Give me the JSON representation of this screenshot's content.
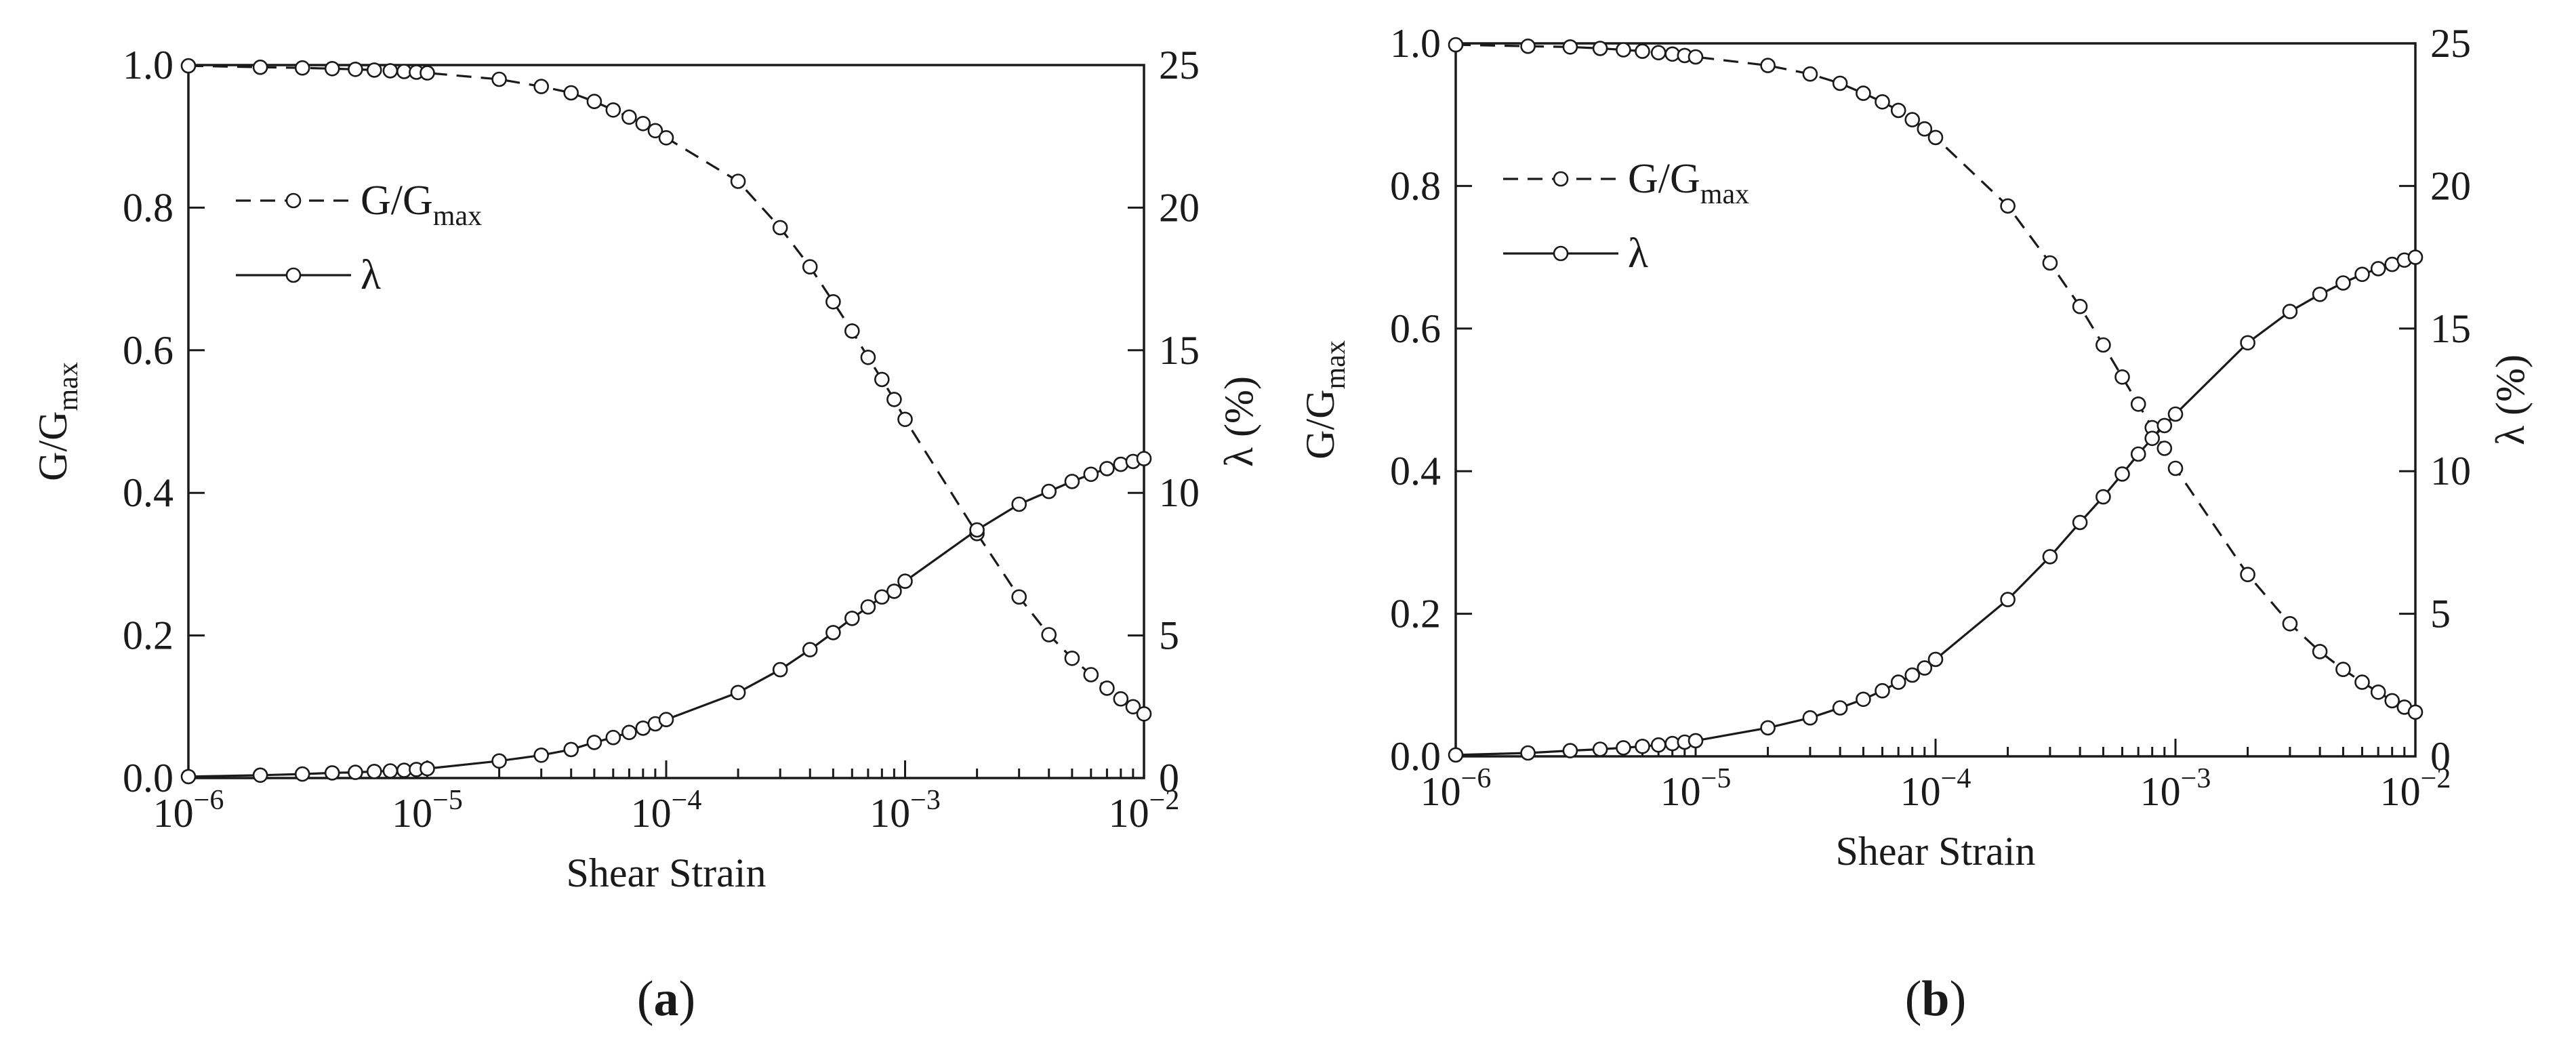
{
  "figure": {
    "panels": [
      {
        "label_open": "(",
        "label_letter": "a",
        "label_close": ")",
        "chart_data": {
          "type": "line",
          "x_scale": "log",
          "xlabel": "Shear Strain",
          "xlim": [
            1e-06,
            0.01
          ],
          "x_ticks": [
            1e-06,
            1e-05,
            0.0001,
            0.001,
            0.01
          ],
          "x_tick_labels": [
            {
              "base": "10",
              "exp": "−6"
            },
            {
              "base": "10",
              "exp": "−5"
            },
            {
              "base": "10",
              "exp": "−4"
            },
            {
              "base": "10",
              "exp": "−3"
            },
            {
              "base": "10",
              "exp": "−2"
            }
          ],
          "ylabel_left": {
            "main": "G/G",
            "sub": "max"
          },
          "ylim_left": [
            0,
            1
          ],
          "y_ticks_left": [
            "0.0",
            "0.2",
            "0.4",
            "0.6",
            "0.8",
            "1.0"
          ],
          "ylabel_right": "λ (%)",
          "ylim_right": [
            0,
            25
          ],
          "y_ticks_right": [
            "0",
            "5",
            "10",
            "15",
            "20",
            "25"
          ],
          "grid": false,
          "legend_position": "top-left",
          "series": [
            {
              "name": {
                "main": "G/G",
                "sub": "max"
              },
              "axis": "left",
              "style": "dashed",
              "marker": "open-circle",
              "x": [
                1e-06,
                2e-06,
                3e-06,
                4e-06,
                5e-06,
                6e-06,
                7e-06,
                8e-06,
                9e-06,
                1e-05,
                2e-05,
                3e-05,
                4e-05,
                5e-05,
                6e-05,
                7e-05,
                8e-05,
                9e-05,
                0.0001,
                0.0002,
                0.0003,
                0.0004,
                0.0005,
                0.0006,
                0.0007,
                0.0008,
                0.0009,
                0.001,
                0.002,
                0.003,
                0.004,
                0.005,
                0.006,
                0.007,
                0.008,
                0.009,
                0.01
              ],
              "y": [
                0.999,
                0.997,
                0.996,
                0.995,
                0.994,
                0.993,
                0.992,
                0.991,
                0.99,
                0.989,
                0.98,
                0.97,
                0.961,
                0.949,
                0.937,
                0.927,
                0.918,
                0.908,
                0.898,
                0.837,
                0.772,
                0.717,
                0.668,
                0.627,
                0.59,
                0.559,
                0.531,
                0.503,
                0.343,
                0.254,
                0.201,
                0.168,
                0.145,
                0.126,
                0.111,
                0.1,
                0.09
              ]
            },
            {
              "name": {
                "main": "λ",
                "sub": ""
              },
              "axis": "right",
              "style": "solid",
              "marker": "open-circle",
              "x": [
                1e-06,
                2e-06,
                3e-06,
                4e-06,
                5e-06,
                6e-06,
                7e-06,
                8e-06,
                9e-06,
                1e-05,
                2e-05,
                3e-05,
                4e-05,
                5e-05,
                6e-05,
                7e-05,
                8e-05,
                9e-05,
                0.0001,
                0.0002,
                0.0003,
                0.0004,
                0.0005,
                0.0006,
                0.0007,
                0.0008,
                0.0009,
                0.001,
                0.002,
                0.003,
                0.004,
                0.005,
                0.006,
                0.007,
                0.008,
                0.009,
                0.01
              ],
              "y": [
                0.05,
                0.1,
                0.14,
                0.18,
                0.2,
                0.23,
                0.25,
                0.27,
                0.3,
                0.33,
                0.6,
                0.8,
                1.0,
                1.25,
                1.42,
                1.6,
                1.75,
                1.9,
                2.05,
                3.0,
                3.8,
                4.5,
                5.1,
                5.6,
                6.0,
                6.35,
                6.55,
                6.9,
                8.7,
                9.6,
                10.05,
                10.4,
                10.65,
                10.85,
                11.0,
                11.1,
                11.2
              ]
            }
          ]
        }
      },
      {
        "label_open": "(",
        "label_letter": "b",
        "label_close": ")",
        "chart_data": {
          "type": "line",
          "x_scale": "log",
          "xlabel": "Shear Strain",
          "xlim": [
            1e-06,
            0.01
          ],
          "x_ticks": [
            1e-06,
            1e-05,
            0.0001,
            0.001,
            0.01
          ],
          "x_tick_labels": [
            {
              "base": "10",
              "exp": "−6"
            },
            {
              "base": "10",
              "exp": "−5"
            },
            {
              "base": "10",
              "exp": "−4"
            },
            {
              "base": "10",
              "exp": "−3"
            },
            {
              "base": "10",
              "exp": "−2"
            }
          ],
          "ylabel_left": {
            "main": "G/G",
            "sub": "max"
          },
          "ylim_left": [
            0,
            1
          ],
          "y_ticks_left": [
            "0.0",
            "0.2",
            "0.4",
            "0.6",
            "0.8",
            "1.0"
          ],
          "ylabel_right": "λ (%)",
          "ylim_right": [
            0,
            25
          ],
          "y_ticks_right": [
            "0",
            "5",
            "10",
            "15",
            "20",
            "25"
          ],
          "grid": false,
          "legend_position": "top-left",
          "series": [
            {
              "name": {
                "main": "G/G",
                "sub": "max"
              },
              "axis": "left",
              "style": "dashed",
              "marker": "open-circle",
              "x": [
                1e-06,
                2e-06,
                3e-06,
                4e-06,
                5e-06,
                6e-06,
                7e-06,
                8e-06,
                9e-06,
                1e-05,
                2e-05,
                3e-05,
                4e-05,
                5e-05,
                6e-05,
                7e-05,
                8e-05,
                9e-05,
                0.0001,
                0.0002,
                0.0003,
                0.0004,
                0.0005,
                0.0006,
                0.0007,
                0.0008,
                0.0009,
                0.001,
                0.002,
                0.003,
                0.004,
                0.005,
                0.006,
                0.007,
                0.008,
                0.009,
                0.01
              ],
              "y": [
                0.998,
                0.996,
                0.995,
                0.993,
                0.991,
                0.989,
                0.987,
                0.985,
                0.983,
                0.981,
                0.969,
                0.957,
                0.944,
                0.93,
                0.918,
                0.906,
                0.893,
                0.88,
                0.868,
                0.772,
                0.692,
                0.631,
                0.577,
                0.532,
                0.494,
                0.461,
                0.432,
                0.404,
                0.255,
                0.186,
                0.147,
                0.122,
                0.104,
                0.09,
                0.078,
                0.069,
                0.062
              ]
            },
            {
              "name": {
                "main": "λ",
                "sub": ""
              },
              "axis": "right",
              "style": "solid",
              "marker": "open-circle",
              "x": [
                1e-06,
                2e-06,
                3e-06,
                4e-06,
                5e-06,
                6e-06,
                7e-06,
                8e-06,
                9e-06,
                1e-05,
                2e-05,
                3e-05,
                4e-05,
                5e-05,
                6e-05,
                7e-05,
                8e-05,
                9e-05,
                0.0001,
                0.0002,
                0.0003,
                0.0004,
                0.0005,
                0.0006,
                0.0007,
                0.0008,
                0.0009,
                0.001,
                0.002,
                0.003,
                0.004,
                0.005,
                0.006,
                0.007,
                0.008,
                0.009,
                0.01
              ],
              "y": [
                0.05,
                0.12,
                0.2,
                0.25,
                0.3,
                0.35,
                0.4,
                0.45,
                0.5,
                0.55,
                1.0,
                1.35,
                1.7,
                2.0,
                2.3,
                2.6,
                2.85,
                3.1,
                3.4,
                5.5,
                7.0,
                8.2,
                9.1,
                9.9,
                10.6,
                11.15,
                11.6,
                12.0,
                14.5,
                15.6,
                16.2,
                16.6,
                16.9,
                17.1,
                17.25,
                17.4,
                17.5
              ]
            }
          ]
        }
      }
    ]
  }
}
